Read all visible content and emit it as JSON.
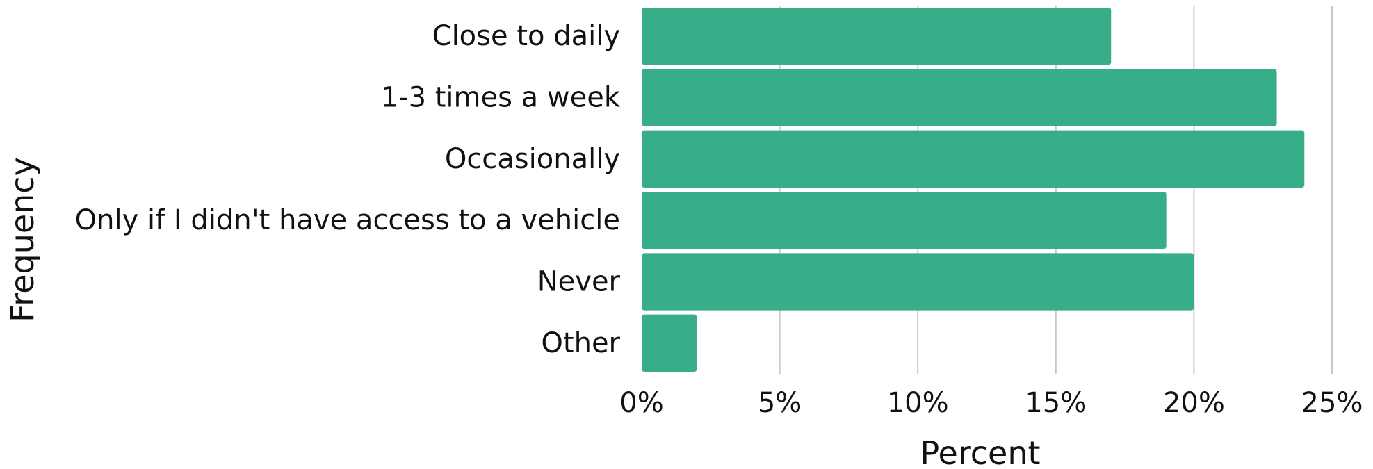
{
  "chart_data": {
    "type": "bar",
    "orientation": "horizontal",
    "categories": [
      "Close to daily",
      "1-3 times a week",
      "Occasionally",
      "Only if I didn't have access to a vehicle",
      "Never",
      "Other"
    ],
    "values": [
      17,
      23,
      24,
      19,
      20,
      2
    ],
    "xlabel": "Percent",
    "ylabel": "Frequency",
    "xlim": [
      0,
      25
    ],
    "xticks": [
      0,
      5,
      10,
      15,
      20,
      25
    ],
    "xtick_labels": [
      "0%",
      "5%",
      "10%",
      "15%",
      "20%",
      "25%"
    ],
    "grid": "vertical",
    "legend": "none",
    "colors": {
      "bar": "#38ad8a",
      "gridline": "#c8c8c8",
      "text": "#111111"
    }
  }
}
